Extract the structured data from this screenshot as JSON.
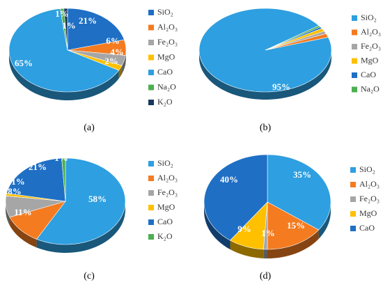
{
  "chart_data": [
    {
      "type": "pie",
      "panel_label": "(a)",
      "legend": [
        "SiO₂",
        "Al₂O₃",
        "Fe₂O₃",
        "MgO",
        "CaO",
        "Na₂O",
        "K₂O"
      ],
      "colors": [
        "#1f6fc5",
        "#f47b20",
        "#a6a6a6",
        "#ffc000",
        "#2e9fe0",
        "#4caf50",
        "#17375e"
      ],
      "values": [
        21,
        6,
        4,
        2,
        65,
        1,
        1
      ],
      "labels": [
        "21%",
        "6%",
        "4%",
        "2%",
        "65%",
        "1%",
        "1%"
      ]
    },
    {
      "type": "pie",
      "panel_label": "(b)",
      "legend": [
        "SiO₂",
        "Al₂O₃",
        "Fe₂O₃",
        "MgO",
        "CaO",
        "Na₂O"
      ],
      "colors": [
        "#2e9fe0",
        "#f47b20",
        "#a6a6a6",
        "#ffc000",
        "#1f6fc5",
        "#4caf50"
      ],
      "values": [
        95,
        1.5,
        1,
        1.2,
        0.7,
        0.6
      ],
      "labels": [
        "95%",
        "",
        "",
        "",
        "",
        ""
      ]
    },
    {
      "type": "pie",
      "panel_label": "(c)",
      "legend": [
        "SiO₂",
        "Al₂O₃",
        "Fe₂O₃",
        "MgO",
        "CaO",
        "K₂O"
      ],
      "colors": [
        "#2e9fe0",
        "#f47b20",
        "#a6a6a6",
        "#ffc000",
        "#1f6fc5",
        "#4caf50"
      ],
      "values": [
        58,
        11,
        8,
        1,
        21,
        1
      ],
      "labels": [
        "58%",
        "11%",
        "8%",
        "1%",
        "21%",
        "1%"
      ]
    },
    {
      "type": "pie",
      "panel_label": "(d)",
      "legend": [
        "SiO₂",
        "Al₂O₃",
        "Fe₂O₃",
        "MgO",
        "CaO"
      ],
      "colors": [
        "#2e9fe0",
        "#f47b20",
        "#a6a6a6",
        "#ffc000",
        "#1f6fc5"
      ],
      "values": [
        35,
        15,
        1,
        9,
        40
      ],
      "labels": [
        "35%",
        "15%",
        "1%",
        "9%",
        "40%"
      ]
    }
  ]
}
